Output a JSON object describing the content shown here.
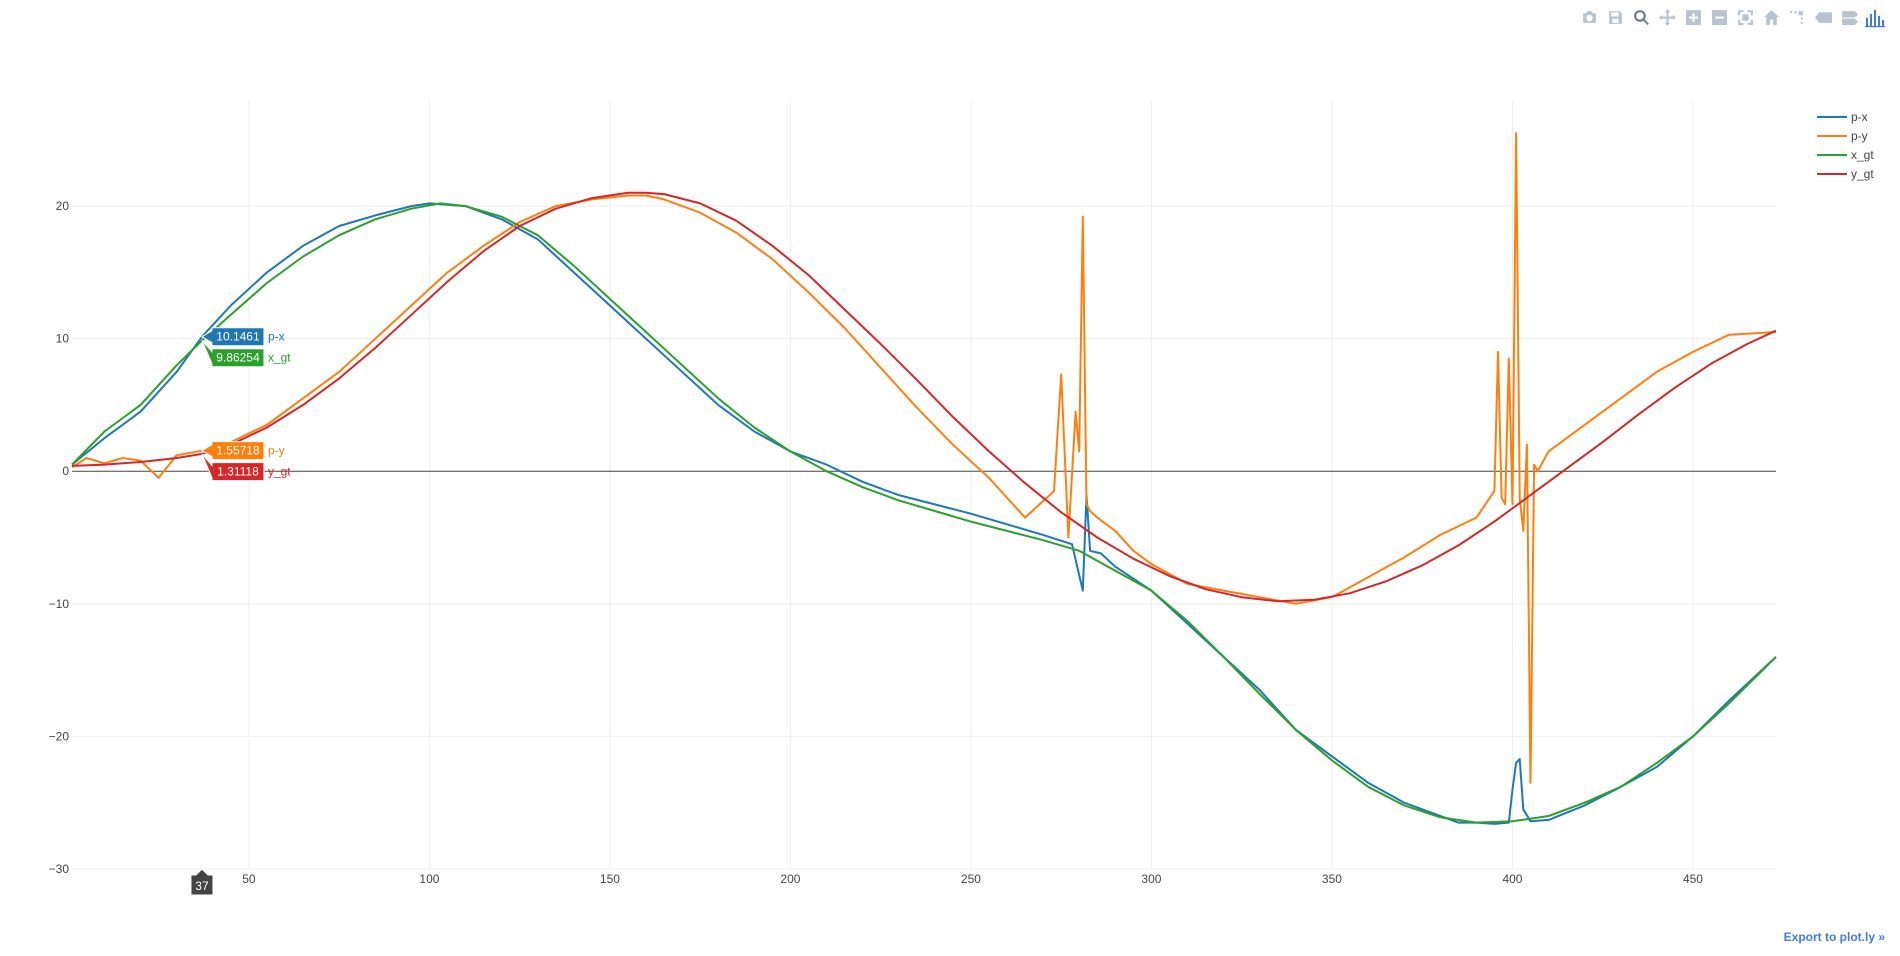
{
  "modebar": {
    "buttons": [
      {
        "name": "camera-icon",
        "title": "Download plot as a png"
      },
      {
        "name": "save-icon",
        "title": "Save and edit plot in cloud"
      },
      {
        "name": "zoom-icon",
        "title": "Zoom",
        "active": true
      },
      {
        "name": "pan-icon",
        "title": "Pan"
      },
      {
        "name": "zoom-in-icon",
        "title": "Zoom in"
      },
      {
        "name": "zoom-out-icon",
        "title": "Zoom out"
      },
      {
        "name": "autoscale-icon",
        "title": "Autoscale"
      },
      {
        "name": "home-icon",
        "title": "Reset axes"
      },
      {
        "name": "spikelines-icon",
        "title": "Toggle Spike Lines"
      },
      {
        "name": "hover-closest-icon",
        "title": "Show closest data on hover"
      },
      {
        "name": "hover-compare-icon",
        "title": "Compare data on hover"
      },
      {
        "name": "plotly-logo-icon",
        "title": "Produced with Plotly"
      }
    ]
  },
  "export_link": "Export to plot.ly »",
  "chart_data": {
    "type": "line",
    "title": "",
    "xlabel": "",
    "ylabel": "",
    "xlim": [
      1,
      473
    ],
    "ylim": [
      -30,
      28
    ],
    "xticks": [
      50,
      100,
      150,
      200,
      250,
      300,
      350,
      400,
      450
    ],
    "yticks": [
      -30,
      -20,
      -10,
      0,
      10,
      20
    ],
    "grid": true,
    "zeroline": true,
    "legend_position": "top-right",
    "colors": {
      "p-x": "#1f77b4",
      "p-y": "#ff7f0e",
      "x_gt": "#2ca02c",
      "y_gt": "#d62728"
    },
    "series": [
      {
        "name": "p-x",
        "color": "#1f77b4",
        "x": [
          1,
          10,
          20,
          30,
          37,
          45,
          55,
          65,
          75,
          85,
          95,
          100,
          110,
          120,
          130,
          140,
          150,
          160,
          170,
          180,
          190,
          200,
          210,
          220,
          230,
          240,
          250,
          260,
          270,
          278,
          281,
          282,
          283,
          286,
          290,
          300,
          310,
          320,
          330,
          340,
          350,
          360,
          370,
          380,
          385,
          390,
          395,
          399,
          400,
          401,
          402,
          403,
          405,
          410,
          420,
          430,
          440,
          450,
          460,
          473
        ],
        "y": [
          0.5,
          2.5,
          4.5,
          7.5,
          10.15,
          12.5,
          15.0,
          17.0,
          18.5,
          19.3,
          20.0,
          20.2,
          20.0,
          19.0,
          17.5,
          15.0,
          12.5,
          10.0,
          7.5,
          5.0,
          3.0,
          1.5,
          0.5,
          -0.8,
          -1.8,
          -2.5,
          -3.2,
          -4.0,
          -4.8,
          -5.5,
          -9.0,
          -1.8,
          -6.0,
          -6.2,
          -7.2,
          -9.0,
          -11.5,
          -14.0,
          -16.5,
          -19.5,
          -21.5,
          -23.5,
          -25.0,
          -26.0,
          -26.5,
          -26.5,
          -26.6,
          -26.5,
          -24.0,
          -22.0,
          -21.7,
          -25.5,
          -26.4,
          -26.3,
          -25.2,
          -23.8,
          -22.3,
          -20.0,
          -17.3,
          -14.0
        ]
      },
      {
        "name": "p-y",
        "color": "#ff7f0e",
        "x": [
          1,
          5,
          10,
          15,
          20,
          25,
          30,
          37,
          45,
          55,
          65,
          75,
          85,
          95,
          105,
          115,
          125,
          135,
          145,
          155,
          160,
          165,
          175,
          185,
          195,
          205,
          215,
          225,
          235,
          245,
          255,
          265,
          273,
          275,
          277,
          279,
          280,
          281,
          282,
          283,
          285,
          290,
          295,
          300,
          310,
          320,
          330,
          340,
          350,
          360,
          370,
          380,
          390,
          395,
          396,
          397,
          398,
          399,
          400,
          401,
          402,
          403,
          404,
          405,
          406,
          407,
          410,
          420,
          430,
          440,
          450,
          460,
          473
        ],
        "y": [
          0.3,
          1.0,
          0.6,
          1.0,
          0.8,
          -0.5,
          1.2,
          1.55,
          2.2,
          3.5,
          5.5,
          7.5,
          10.0,
          12.5,
          15.0,
          17.0,
          18.8,
          20.0,
          20.5,
          20.8,
          20.8,
          20.5,
          19.5,
          18.0,
          16.0,
          13.5,
          10.8,
          7.8,
          4.8,
          2.0,
          -0.5,
          -3.5,
          -1.5,
          7.3,
          -5.0,
          4.5,
          1.5,
          19.2,
          -2.5,
          -3.0,
          -3.5,
          -4.5,
          -6.0,
          -7.0,
          -8.5,
          -9.0,
          -9.5,
          -10.0,
          -9.5,
          -8.0,
          -6.5,
          -4.8,
          -3.5,
          -1.5,
          9.0,
          -2.0,
          -2.5,
          8.5,
          -2.5,
          25.5,
          -2.0,
          -4.5,
          2.0,
          -23.5,
          0.5,
          0.0,
          1.5,
          3.5,
          5.5,
          7.5,
          9.0,
          10.3,
          10.5
        ]
      },
      {
        "name": "x_gt",
        "color": "#2ca02c",
        "x": [
          1,
          10,
          20,
          30,
          37,
          45,
          55,
          65,
          75,
          85,
          95,
          103,
          110,
          120,
          130,
          140,
          150,
          160,
          170,
          180,
          190,
          200,
          210,
          220,
          230,
          240,
          250,
          260,
          270,
          280,
          290,
          300,
          310,
          320,
          330,
          340,
          350,
          360,
          370,
          380,
          390,
          400,
          410,
          420,
          430,
          440,
          450,
          460,
          473
        ],
        "y": [
          0.5,
          3.0,
          5.0,
          8.0,
          9.86,
          11.8,
          14.2,
          16.2,
          17.8,
          19.0,
          19.8,
          20.2,
          20.0,
          19.2,
          17.8,
          15.5,
          13.0,
          10.5,
          8.0,
          5.5,
          3.3,
          1.5,
          0.0,
          -1.2,
          -2.2,
          -3.0,
          -3.8,
          -4.5,
          -5.2,
          -6.0,
          -7.5,
          -9.0,
          -11.3,
          -14.0,
          -16.8,
          -19.5,
          -21.8,
          -23.8,
          -25.2,
          -26.1,
          -26.5,
          -26.4,
          -26.0,
          -25.0,
          -23.8,
          -22.0,
          -20.0,
          -17.5,
          -14.0
        ]
      },
      {
        "name": "y_gt",
        "color": "#d62728",
        "x": [
          1,
          10,
          20,
          30,
          37,
          45,
          55,
          65,
          75,
          85,
          95,
          105,
          115,
          125,
          135,
          145,
          155,
          160,
          165,
          175,
          185,
          195,
          205,
          215,
          225,
          235,
          245,
          255,
          265,
          275,
          285,
          295,
          305,
          315,
          325,
          335,
          345,
          355,
          365,
          375,
          385,
          395,
          405,
          415,
          425,
          435,
          445,
          455,
          465,
          473
        ],
        "y": [
          0.4,
          0.5,
          0.7,
          1.0,
          1.31,
          2.0,
          3.3,
          5.0,
          7.0,
          9.3,
          11.8,
          14.3,
          16.6,
          18.5,
          19.8,
          20.6,
          21.0,
          21.0,
          20.9,
          20.2,
          18.9,
          17.0,
          14.8,
          12.2,
          9.6,
          6.9,
          4.1,
          1.5,
          -0.9,
          -3.1,
          -5.0,
          -6.6,
          -7.9,
          -8.9,
          -9.5,
          -9.8,
          -9.7,
          -9.2,
          -8.3,
          -7.1,
          -5.6,
          -3.8,
          -1.8,
          0.2,
          2.2,
          4.3,
          6.3,
          8.1,
          9.6,
          10.6
        ]
      }
    ],
    "hover": {
      "x": 37,
      "x_label": "37",
      "items": [
        {
          "series": "p-x",
          "value": "10.1461",
          "y": 10.1461,
          "color": "#1f77b4"
        },
        {
          "series": "x_gt",
          "value": "9.86254",
          "y": 9.86254,
          "color": "#2ca02c"
        },
        {
          "series": "p-y",
          "value": "1.55718",
          "y": 1.55718,
          "color": "#ff7f0e"
        },
        {
          "series": "y_gt",
          "value": "1.31118",
          "y": 1.31118,
          "color": "#d62728"
        }
      ]
    }
  }
}
